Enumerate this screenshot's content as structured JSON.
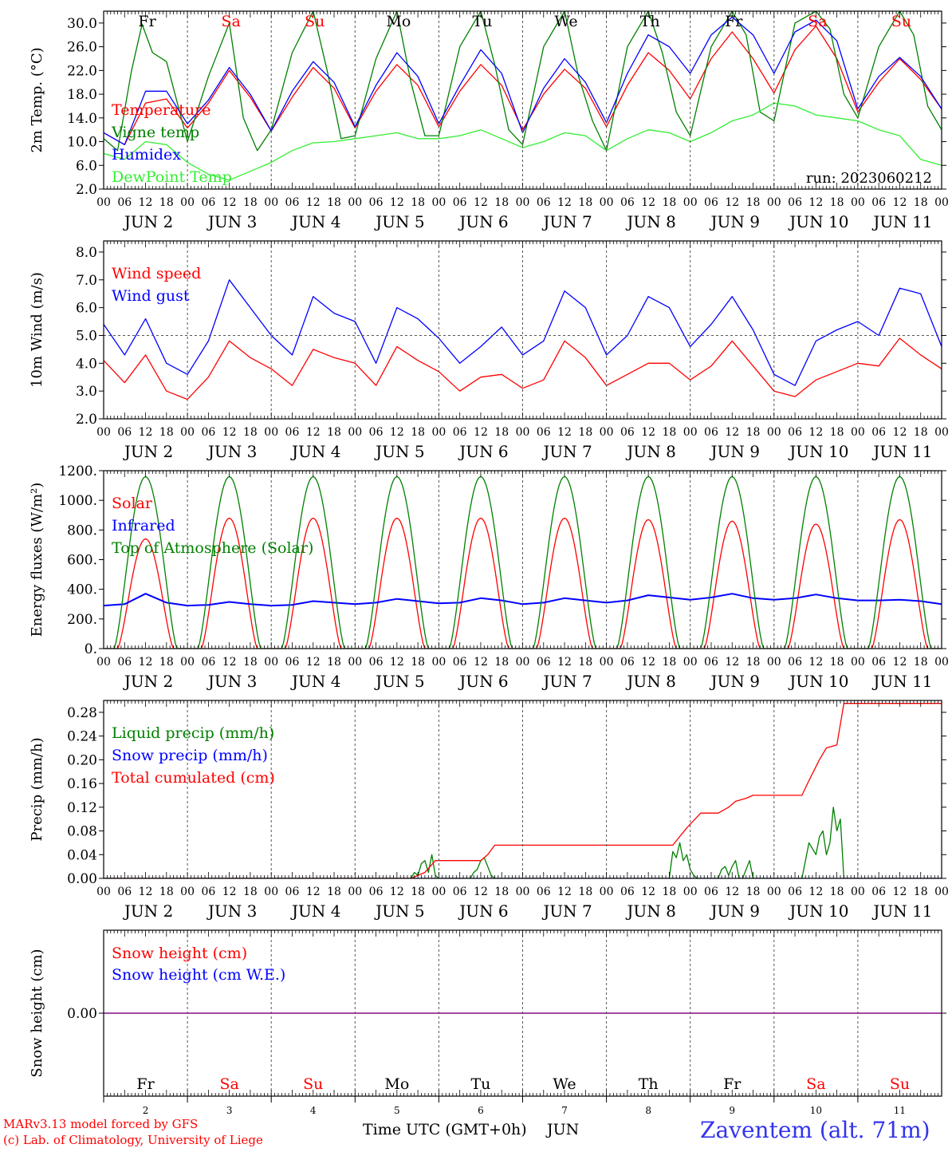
{
  "meta": {
    "run_label": "run: 2023060212",
    "footer_model": "MARv3.13 model forced by GFS",
    "footer_lab": "(c) Lab. of Climatology, University of Liege",
    "footer_xlabel": "Time UTC (GMT+0h)",
    "footer_month": "JUN",
    "station": "Zaventem (alt. 71m)"
  },
  "colors": {
    "red": "#ff0000",
    "green": "#008000",
    "blue": "#0000ff",
    "lightgreen": "#33ee33",
    "purple": "#800080",
    "grid": "#555555",
    "axis": "#000000"
  },
  "days": [
    {
      "date": "2",
      "month": "JUN",
      "dow": "Fr",
      "weekend": false
    },
    {
      "date": "3",
      "month": "JUN",
      "dow": "Sa",
      "weekend": true
    },
    {
      "date": "4",
      "month": "JUN",
      "dow": "Su",
      "weekend": true
    },
    {
      "date": "5",
      "month": "JUN",
      "dow": "Mo",
      "weekend": false
    },
    {
      "date": "6",
      "month": "JUN",
      "dow": "Tu",
      "weekend": false
    },
    {
      "date": "7",
      "month": "JUN",
      "dow": "We",
      "weekend": false
    },
    {
      "date": "8",
      "month": "JUN",
      "dow": "Th",
      "weekend": false
    },
    {
      "date": "9",
      "month": "JUN",
      "dow": "Fr",
      "weekend": false
    },
    {
      "date": "10",
      "month": "JUN",
      "dow": "Sa",
      "weekend": true
    },
    {
      "date": "11",
      "month": "JUN",
      "dow": "Su",
      "weekend": true
    }
  ],
  "hour_ticks": [
    "00",
    "06",
    "12",
    "18"
  ],
  "chart_data": [
    {
      "id": "temp",
      "type": "line",
      "ylabel": "2m Temp. (°C)",
      "ylim": [
        2,
        32
      ],
      "yticks": [
        "2.0",
        "6.0",
        "10.0",
        "14.0",
        "18.0",
        "22.0",
        "26.0",
        "30.0"
      ],
      "x_unit": "hours since 2023-06-02 00 UTC",
      "xlim": [
        0,
        240
      ],
      "show_dow": true,
      "show_run": true,
      "series": [
        {
          "name": "Temperature",
          "color": "red",
          "x": [
            0,
            6,
            12,
            18,
            24,
            30,
            36,
            42,
            48,
            54,
            60,
            66,
            72,
            78,
            84,
            90,
            96,
            102,
            108,
            114,
            120,
            126,
            132,
            138,
            144,
            150,
            156,
            162,
            168,
            174,
            180,
            186,
            192,
            198,
            204,
            210,
            216,
            222,
            228,
            234,
            240
          ],
          "values": [
            11.5,
            9.5,
            16.5,
            17.2,
            12.3,
            16.5,
            22.0,
            17.5,
            11.8,
            17.5,
            22.5,
            19.0,
            12.3,
            18.5,
            23.0,
            19.5,
            12.5,
            18.5,
            23.0,
            19.5,
            12.0,
            18.0,
            22.2,
            19.0,
            12.5,
            19.5,
            25.0,
            22.0,
            17.2,
            24.0,
            28.5,
            24.0,
            18.2,
            25.5,
            29.5,
            24.0,
            15.0,
            20.0,
            24.0,
            20.5,
            15.5
          ]
        },
        {
          "name": "Vigne temp",
          "color": "green",
          "x": [
            0,
            4,
            8,
            11,
            14,
            18,
            24,
            30,
            36,
            40,
            44,
            48,
            54,
            60,
            64,
            68,
            72,
            78,
            84,
            88,
            92,
            96,
            102,
            108,
            112,
            116,
            120,
            126,
            132,
            136,
            140,
            144,
            150,
            156,
            160,
            164,
            168,
            174,
            180,
            184,
            188,
            192,
            198,
            204,
            208,
            212,
            216,
            222,
            228,
            232,
            236,
            240
          ],
          "values": [
            10.5,
            8.5,
            22.0,
            29.8,
            25.0,
            23.5,
            10.0,
            21.0,
            30.0,
            14.0,
            8.5,
            12.0,
            25.0,
            32.0,
            22.0,
            10.5,
            11.0,
            24.0,
            32.0,
            20.0,
            11.0,
            11.0,
            26.0,
            32.0,
            23.0,
            12.0,
            9.5,
            26.0,
            32.0,
            21.0,
            13.5,
            8.5,
            26.0,
            32.0,
            25.0,
            15.0,
            11.0,
            26.0,
            32.0,
            28.0,
            15.0,
            13.5,
            30.0,
            32.0,
            29.0,
            18.0,
            14.0,
            26.0,
            32.0,
            28.0,
            16.0,
            12.0
          ]
        },
        {
          "name": "Humidex",
          "color": "blue",
          "x": [
            0,
            6,
            12,
            18,
            24,
            30,
            36,
            42,
            48,
            54,
            60,
            66,
            72,
            78,
            84,
            90,
            96,
            102,
            108,
            114,
            120,
            126,
            132,
            138,
            144,
            150,
            156,
            162,
            168,
            174,
            180,
            186,
            192,
            198,
            204,
            210,
            216,
            222,
            228,
            234,
            240
          ],
          "values": [
            11.5,
            9.5,
            18.5,
            18.5,
            13.0,
            17.0,
            22.5,
            18.0,
            11.8,
            18.5,
            23.5,
            20.0,
            12.5,
            19.5,
            25.0,
            21.0,
            13.0,
            19.5,
            25.5,
            21.5,
            11.5,
            19.0,
            24.0,
            20.0,
            13.2,
            21.5,
            28.0,
            26.0,
            21.5,
            28.0,
            31.0,
            28.0,
            21.5,
            28.5,
            30.5,
            27.0,
            15.5,
            21.0,
            24.2,
            21.0,
            15.5
          ]
        },
        {
          "name": "DewPoint Temp",
          "color": "lightgreen",
          "x": [
            0,
            6,
            12,
            18,
            24,
            30,
            36,
            42,
            48,
            54,
            60,
            66,
            72,
            78,
            84,
            90,
            96,
            102,
            108,
            114,
            120,
            126,
            132,
            138,
            144,
            150,
            156,
            162,
            168,
            174,
            180,
            186,
            192,
            198,
            204,
            210,
            216,
            222,
            228,
            234,
            240
          ],
          "values": [
            8.0,
            7.0,
            10.0,
            9.5,
            6.5,
            4.5,
            3.5,
            5.0,
            6.5,
            8.5,
            9.8,
            10.0,
            10.5,
            11.0,
            11.5,
            10.5,
            10.5,
            11.0,
            12.0,
            10.5,
            9.0,
            10.0,
            11.5,
            11.0,
            8.5,
            10.5,
            12.0,
            11.5,
            10.0,
            11.5,
            13.5,
            14.5,
            16.5,
            16.0,
            14.5,
            14.0,
            13.5,
            12.0,
            11.0,
            7.0,
            6.0
          ]
        }
      ]
    },
    {
      "id": "wind",
      "type": "line",
      "ylabel": "10m Wind (m/s)",
      "ylim": [
        2,
        8.4
      ],
      "yticks": [
        "2.0",
        "3.0",
        "4.0",
        "5.0",
        "6.0",
        "7.0",
        "8.0"
      ],
      "refline": 5.0,
      "x_unit": "hours since 2023-06-02 00 UTC",
      "xlim": [
        0,
        240
      ],
      "series": [
        {
          "name": "Wind speed",
          "color": "red",
          "x": [
            0,
            6,
            12,
            18,
            24,
            30,
            36,
            42,
            48,
            54,
            60,
            66,
            72,
            78,
            84,
            90,
            96,
            102,
            108,
            114,
            120,
            126,
            132,
            138,
            144,
            150,
            156,
            162,
            168,
            174,
            180,
            186,
            192,
            198,
            204,
            210,
            216,
            222,
            228,
            234,
            240
          ],
          "values": [
            4.1,
            3.3,
            4.3,
            3.0,
            2.7,
            3.5,
            4.8,
            4.2,
            3.8,
            3.2,
            4.5,
            4.2,
            4.0,
            3.2,
            4.6,
            4.1,
            3.7,
            3.0,
            3.5,
            3.6,
            3.1,
            3.4,
            4.8,
            4.2,
            3.2,
            3.6,
            4.0,
            4.0,
            3.4,
            3.9,
            4.8,
            3.9,
            3.0,
            2.8,
            3.4,
            3.7,
            4.0,
            3.9,
            4.9,
            4.3,
            3.8
          ]
        },
        {
          "name": "Wind gust",
          "color": "blue",
          "x": [
            0,
            6,
            12,
            18,
            24,
            30,
            36,
            42,
            48,
            54,
            60,
            66,
            72,
            78,
            84,
            90,
            96,
            102,
            108,
            114,
            120,
            126,
            132,
            138,
            144,
            150,
            156,
            162,
            168,
            174,
            180,
            186,
            192,
            198,
            204,
            210,
            216,
            222,
            228,
            234,
            240
          ],
          "values": [
            5.4,
            4.3,
            5.6,
            4.0,
            3.6,
            4.8,
            7.0,
            6.0,
            5.0,
            4.3,
            6.4,
            5.8,
            5.5,
            4.0,
            6.0,
            5.6,
            4.9,
            4.0,
            4.6,
            5.3,
            4.3,
            4.8,
            6.6,
            6.0,
            4.3,
            5.0,
            6.4,
            6.0,
            4.6,
            5.4,
            6.4,
            5.2,
            3.6,
            3.2,
            4.8,
            5.2,
            5.5,
            5.0,
            6.7,
            6.5,
            4.6
          ]
        }
      ]
    },
    {
      "id": "energy",
      "type": "line",
      "ylabel": "Energy fluxes (W/m²)",
      "ylim": [
        0,
        1200
      ],
      "yticks": [
        "0.",
        "200.",
        "400.",
        "600.",
        "800.",
        "1000.",
        "1200."
      ],
      "x_unit": "hours since 2023-06-02 00 UTC",
      "xlim": [
        0,
        240
      ],
      "series": [
        {
          "name": "Solar",
          "color": "red",
          "daily_peaks": [
            740,
            880,
            880,
            880,
            880,
            880,
            870,
            860,
            840,
            870
          ],
          "sunrise_hour": 4.0,
          "sunset_hour": 20.0
        },
        {
          "name": "Infrared",
          "color": "blue",
          "x": [
            0,
            6,
            12,
            18,
            24,
            30,
            36,
            42,
            48,
            54,
            60,
            66,
            72,
            78,
            84,
            90,
            96,
            102,
            108,
            114,
            120,
            126,
            132,
            138,
            144,
            150,
            156,
            162,
            168,
            174,
            180,
            186,
            192,
            198,
            204,
            210,
            216,
            222,
            228,
            234,
            240
          ],
          "values": [
            290,
            300,
            370,
            310,
            290,
            295,
            315,
            300,
            290,
            295,
            320,
            310,
            300,
            310,
            335,
            320,
            305,
            310,
            340,
            325,
            300,
            310,
            340,
            325,
            310,
            325,
            360,
            345,
            330,
            345,
            370,
            340,
            330,
            340,
            365,
            340,
            325,
            325,
            330,
            320,
            300
          ]
        },
        {
          "name": "Top of Atmosphere (Solar)",
          "color": "green",
          "daily_peaks": [
            1160,
            1160,
            1160,
            1160,
            1160,
            1160,
            1160,
            1160,
            1160,
            1160
          ],
          "sunrise_hour": 3.0,
          "sunset_hour": 21.0
        }
      ]
    },
    {
      "id": "precip",
      "type": "line",
      "ylabel": "Precip (mm/h)",
      "ylim": [
        0,
        0.3
      ],
      "yticks": [
        "0.00",
        "0.04",
        "0.08",
        "0.12",
        "0.16",
        "0.20",
        "0.24",
        "0.28"
      ],
      "x_unit": "hours since 2023-06-02 00 UTC",
      "xlim": [
        0,
        240
      ],
      "series": [
        {
          "name": "Liquid precip (mm/h)",
          "color": "green",
          "x": [
            0,
            88,
            89,
            90,
            91,
            92,
            93,
            94,
            95,
            96,
            105,
            106,
            107,
            108,
            109,
            110,
            111,
            112,
            162,
            163,
            164,
            165,
            166,
            167,
            168,
            169,
            170,
            176,
            177,
            178,
            179,
            180,
            181,
            182,
            183,
            184,
            185,
            186,
            200,
            201,
            202,
            203,
            204,
            205,
            206,
            207,
            208,
            209,
            210,
            211,
            212,
            240
          ],
          "values": [
            0,
            0,
            0.01,
            0.005,
            0.025,
            0.03,
            0.01,
            0.04,
            0.005,
            0,
            0,
            0.01,
            0.015,
            0.03,
            0.035,
            0.02,
            0.005,
            0,
            0,
            0.045,
            0.035,
            0.06,
            0.03,
            0.04,
            0.015,
            0.005,
            0,
            0,
            0.015,
            0.02,
            0.005,
            0.02,
            0.03,
            0,
            0,
            0.015,
            0.03,
            0,
            0,
            0.03,
            0.06,
            0.05,
            0.04,
            0.07,
            0.08,
            0.04,
            0.06,
            0.12,
            0.08,
            0.1,
            0,
            0
          ]
        },
        {
          "name": "Snow precip (mm/h)",
          "color": "blue",
          "x": [
            0,
            240
          ],
          "values": [
            0,
            0
          ]
        },
        {
          "name": "Total cumulated (cm)",
          "color": "red",
          "x": [
            0,
            88,
            92,
            95,
            108,
            110,
            112,
            120,
            163,
            167,
            171,
            176,
            179,
            181,
            184,
            186,
            200,
            202,
            205,
            207,
            210,
            212,
            240
          ],
          "values": [
            0,
            0,
            0.01,
            0.03,
            0.03,
            0.04,
            0.056,
            0.056,
            0.056,
            0.085,
            0.11,
            0.11,
            0.12,
            0.13,
            0.135,
            0.14,
            0.14,
            0.165,
            0.2,
            0.22,
            0.225,
            0.295,
            0.295
          ]
        }
      ]
    },
    {
      "id": "snow",
      "type": "line",
      "ylabel": "Snow height (cm)",
      "ylim": [
        -1,
        1
      ],
      "yticks": [
        "0.00"
      ],
      "x_unit": "hours since 2023-06-02 00 UTC",
      "xlim": [
        0,
        240
      ],
      "show_bottom_dow": true,
      "series": [
        {
          "name": "Snow height (cm)",
          "color": "red",
          "x": [
            0,
            240
          ],
          "values": [
            0,
            0
          ]
        },
        {
          "name": "Snow height (cm W.E.)",
          "color": "blue",
          "x": [
            0,
            240
          ],
          "values": [
            0,
            0
          ]
        }
      ]
    }
  ]
}
